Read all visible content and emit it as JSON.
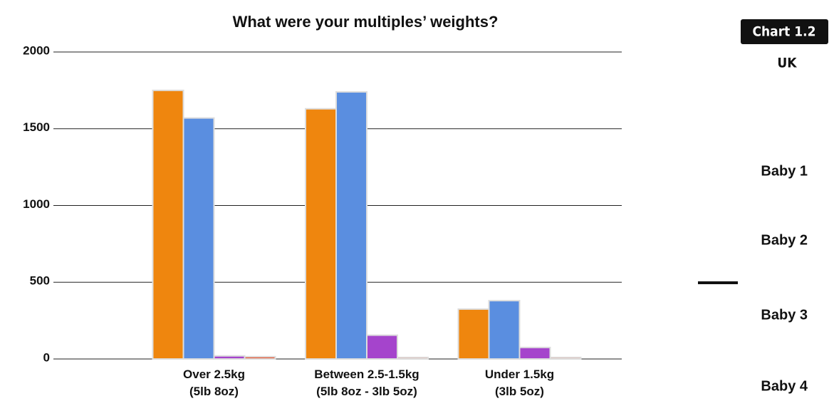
{
  "chart_data": {
    "type": "bar",
    "title": "What were your multiples’ weights?",
    "badge": "Chart 1.2",
    "region": "UK",
    "categories": [
      "Over 2.5kg\n(5lb 8oz)",
      "Between 2.5-1.5kg\n(5lb 8oz - 3lb 5oz)",
      "Under 1.5kg\n(3lb 5oz)"
    ],
    "series": [
      {
        "name": "Baby 1",
        "color": "#ef860e",
        "values": [
          1750,
          1630,
          325
        ]
      },
      {
        "name": "Baby 2",
        "color": "#5a8ee0",
        "values": [
          1570,
          1740,
          380
        ]
      },
      {
        "name": "Baby 3",
        "color": "#a544cc",
        "values": [
          20,
          155,
          75
        ]
      },
      {
        "name": "Baby 4",
        "color": "#e2532f",
        "values": [
          15,
          10,
          10
        ]
      }
    ],
    "ylim": [
      0,
      2000
    ],
    "yticks": [
      0,
      500,
      1000,
      1500,
      2000
    ],
    "grid": true
  }
}
